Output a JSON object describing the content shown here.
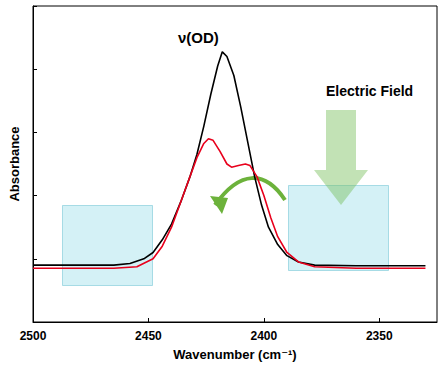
{
  "chart_data": {
    "type": "line",
    "xlabel": "Wavenumber (cm⁻¹)",
    "ylabel": "Absorbance",
    "annotations": [
      "ν(OD)",
      "Electric Field"
    ],
    "xlim": [
      2325,
      2500
    ],
    "xticks": [
      2500,
      2450,
      2400,
      2350
    ],
    "ylim": [
      0,
      1
    ],
    "yticks": [
      0,
      0.2,
      0.4,
      0.6,
      0.8,
      1
    ],
    "log": false,
    "grid": false,
    "tick_labels": "x",
    "series": [
      {
        "color": "#000000",
        "line_style": "solid",
        "x": [
          2500,
          2480,
          2465,
          2458,
          2452,
          2448,
          2444,
          2440,
          2436,
          2432,
          2429,
          2426,
          2423,
          2420,
          2418,
          2416,
          2413,
          2410,
          2407,
          2404,
          2401,
          2398,
          2394,
          2390,
          2385,
          2378,
          2360,
          2345,
          2330
        ],
        "values": [
          0.18,
          0.18,
          0.18,
          0.185,
          0.2,
          0.22,
          0.26,
          0.31,
          0.38,
          0.46,
          0.53,
          0.62,
          0.72,
          0.81,
          0.855,
          0.84,
          0.78,
          0.68,
          0.57,
          0.46,
          0.37,
          0.3,
          0.245,
          0.21,
          0.19,
          0.18,
          0.178,
          0.178,
          0.178
        ]
      },
      {
        "color": "#e8001c",
        "line_style": "solid",
        "x": [
          2500,
          2465,
          2455,
          2448,
          2444,
          2440,
          2436,
          2432,
          2429,
          2426,
          2424,
          2422,
          2419,
          2416,
          2414,
          2411,
          2408,
          2406,
          2403,
          2400,
          2397,
          2394,
          2390,
          2385,
          2378,
          2360,
          2330
        ],
        "values": [
          0.17,
          0.17,
          0.175,
          0.2,
          0.24,
          0.3,
          0.38,
          0.46,
          0.52,
          0.565,
          0.58,
          0.575,
          0.54,
          0.5,
          0.49,
          0.495,
          0.5,
          0.495,
          0.46,
          0.4,
          0.33,
          0.27,
          0.22,
          0.19,
          0.175,
          0.17,
          0.17
        ]
      }
    ]
  }
}
